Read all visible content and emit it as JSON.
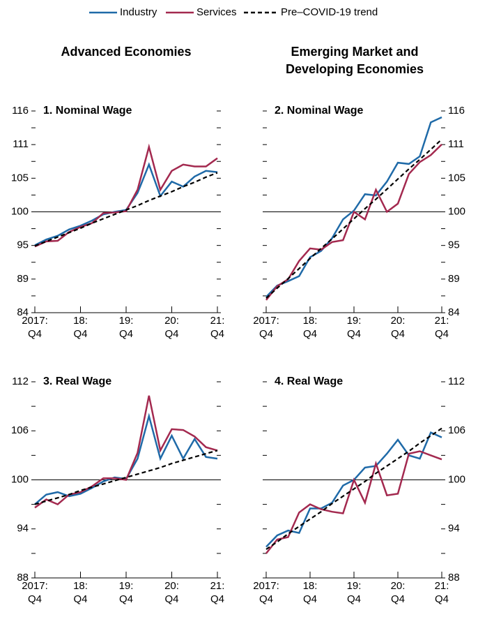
{
  "column_titles": [
    {
      "lines": [
        "Advanced Economies"
      ]
    },
    {
      "lines": [
        "Emerging Market and",
        "Developing Economies"
      ]
    }
  ],
  "chart_data": [
    {
      "type": "line",
      "title": "1. Nominal Wage",
      "ylabel_side": "left",
      "categories": [
        "2017:\nQ4",
        null,
        null,
        null,
        "18:\nQ4",
        null,
        null,
        null,
        "19:\nQ4",
        null,
        null,
        null,
        "20:\nQ4",
        null,
        null,
        null,
        "21:\nQ4"
      ],
      "ylim": [
        84,
        116
      ],
      "yticks": [
        84,
        {
          "value": 89.333,
          "label": "89"
        },
        {
          "value": 94.667,
          "label": "95"
        },
        100,
        {
          "value": 105.333,
          "label": "105"
        },
        {
          "value": 110.667,
          "label": "111"
        },
        116
      ],
      "yminorticks": [
        86.667,
        92,
        97.333,
        102.667,
        108,
        113.333
      ],
      "reference_line": 100,
      "series": [
        {
          "name": "Industry",
          "color": "#1f6aa8",
          "values": [
            94.7,
            95.6,
            96.2,
            97.2,
            97.8,
            98.6,
            99.6,
            100.0,
            100.3,
            103.0,
            107.5,
            102.5,
            104.8,
            104.0,
            105.6,
            106.5,
            106.3
          ]
        },
        {
          "name": "Services",
          "color": "#a3294f",
          "values": [
            94.5,
            95.3,
            95.4,
            96.8,
            97.6,
            98.2,
            99.8,
            99.9,
            100.1,
            103.5,
            110.3,
            103.5,
            106.5,
            107.5,
            107.2,
            107.2,
            108.5
          ]
        },
        {
          "name": "Pre–COVID-19 trend",
          "color": "#000000",
          "dash": true,
          "values": [
            94.6,
            95.3,
            96.0,
            96.7,
            97.4,
            98.2,
            98.9,
            99.6,
            100.3,
            101.0,
            101.8,
            102.5,
            103.2,
            104.0,
            104.7,
            105.5,
            106.2
          ]
        }
      ]
    },
    {
      "type": "line",
      "title": "2. Nominal Wage",
      "ylabel_side": "right",
      "categories": [
        "2017:\nQ4",
        null,
        null,
        null,
        "18:\nQ4",
        null,
        null,
        null,
        "19:\nQ4",
        null,
        null,
        null,
        "20:\nQ4",
        null,
        null,
        null,
        "21:\nQ4"
      ],
      "ylim": [
        84,
        116
      ],
      "yticks": [
        84,
        {
          "value": 89.333,
          "label": "89"
        },
        {
          "value": 94.667,
          "label": "95"
        },
        100,
        {
          "value": 105.333,
          "label": "105"
        },
        {
          "value": 110.667,
          "label": "111"
        },
        116
      ],
      "yminorticks": [
        86.667,
        92,
        97.333,
        102.667,
        108,
        113.333
      ],
      "reference_line": 100,
      "series": [
        {
          "name": "Industry",
          "color": "#1f6aa8",
          "values": [
            86.5,
            88.3,
            89.0,
            89.8,
            92.8,
            93.8,
            95.8,
            98.8,
            100.2,
            102.8,
            102.6,
            104.8,
            107.8,
            107.6,
            108.8,
            114.2,
            115.0
          ]
        },
        {
          "name": "Services",
          "color": "#a3294f",
          "values": [
            86.0,
            88.2,
            89.3,
            92.2,
            94.2,
            94.0,
            95.2,
            95.5,
            100.0,
            98.8,
            103.5,
            100.0,
            101.3,
            106.0,
            107.9,
            109.0,
            110.7
          ]
        },
        {
          "name": "Pre–COVID-19 trend",
          "color": "#000000",
          "dash": true,
          "values": [
            86.3,
            87.9,
            89.4,
            91.0,
            92.6,
            94.2,
            95.7,
            97.3,
            98.9,
            100.5,
            102.0,
            103.6,
            105.2,
            106.8,
            108.3,
            109.9,
            111.5
          ]
        }
      ]
    },
    {
      "type": "line",
      "title": "3. Real Wage",
      "ylabel_side": "left",
      "categories": [
        "2017:\nQ4",
        null,
        null,
        null,
        "18:\nQ4",
        null,
        null,
        null,
        "19:\nQ4",
        null,
        null,
        null,
        "20:\nQ4",
        null,
        null,
        null,
        "21:\nQ4"
      ],
      "ylim": [
        88,
        112
      ],
      "yticks": [
        88,
        94,
        100,
        106,
        112
      ],
      "yminorticks": [
        91,
        97,
        103,
        109
      ],
      "reference_line": 100,
      "series": [
        {
          "name": "Industry",
          "color": "#1f6aa8",
          "values": [
            97.0,
            98.2,
            98.5,
            98.0,
            98.3,
            99.0,
            99.8,
            100.3,
            100.1,
            102.6,
            107.8,
            102.6,
            105.4,
            102.6,
            105.0,
            102.8,
            102.6
          ]
        },
        {
          "name": "Services",
          "color": "#a3294f",
          "values": [
            96.6,
            97.6,
            97.0,
            98.2,
            98.5,
            99.2,
            100.2,
            100.2,
            100.0,
            103.3,
            110.3,
            103.6,
            106.2,
            106.1,
            105.3,
            104.0,
            103.6
          ]
        },
        {
          "name": "Pre–COVID-19 trend",
          "color": "#000000",
          "dash": true,
          "values": [
            97.0,
            97.4,
            97.8,
            98.2,
            98.7,
            99.1,
            99.5,
            99.9,
            100.3,
            100.7,
            101.1,
            101.5,
            102.0,
            102.4,
            102.8,
            103.2,
            103.6
          ]
        }
      ]
    },
    {
      "type": "line",
      "title": "4. Real Wage",
      "ylabel_side": "right",
      "categories": [
        "2017:\nQ4",
        null,
        null,
        null,
        "18:\nQ4",
        null,
        null,
        null,
        "19:\nQ4",
        null,
        null,
        null,
        "20:\nQ4",
        null,
        null,
        null,
        "21:\nQ4"
      ],
      "ylim": [
        88,
        112
      ],
      "yticks": [
        88,
        94,
        100,
        106,
        112
      ],
      "yminorticks": [
        91,
        97,
        103,
        109
      ],
      "reference_line": 100,
      "series": [
        {
          "name": "Industry",
          "color": "#1f6aa8",
          "values": [
            91.8,
            93.2,
            93.8,
            93.5,
            96.5,
            96.5,
            97.2,
            99.3,
            100.0,
            101.5,
            101.7,
            103.2,
            104.9,
            103.0,
            102.6,
            105.8,
            105.2
          ]
        },
        {
          "name": "Services",
          "color": "#a3294f",
          "values": [
            91.0,
            92.7,
            93.0,
            96.0,
            97.0,
            96.4,
            96.1,
            95.9,
            100.0,
            97.2,
            102.0,
            98.1,
            98.3,
            103.2,
            103.5,
            103.0,
            102.5
          ]
        },
        {
          "name": "Pre–COVID-19 trend",
          "color": "#000000",
          "dash": true,
          "values": [
            91.5,
            92.4,
            93.4,
            94.3,
            95.2,
            96.1,
            97.1,
            98.0,
            98.9,
            99.8,
            100.8,
            101.7,
            102.6,
            103.5,
            104.5,
            105.4,
            106.3
          ]
        }
      ]
    }
  ]
}
